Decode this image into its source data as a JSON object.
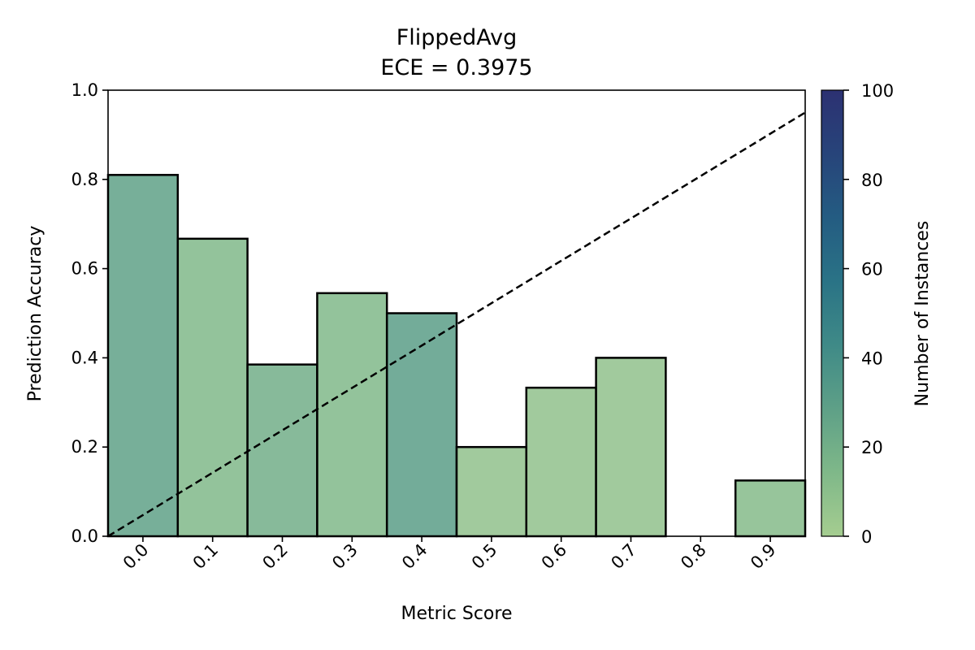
{
  "chart_data": {
    "type": "bar",
    "title": "FlippedAvg",
    "subtitle": "ECE = 0.3975",
    "xlabel": "Metric Score",
    "ylabel": "Prediction Accuracy",
    "categories": [
      "0.0",
      "0.1",
      "0.2",
      "0.3",
      "0.4",
      "0.5",
      "0.6",
      "0.7",
      "0.8",
      "0.9"
    ],
    "x": [
      0.0,
      0.1,
      0.2,
      0.3,
      0.4,
      0.5,
      0.6,
      0.7,
      0.8,
      0.9
    ],
    "values": [
      0.81,
      0.667,
      0.385,
      0.545,
      0.5,
      0.2,
      0.333,
      0.4,
      0.0,
      0.125
    ],
    "counts": [
      28,
      14,
      20,
      14,
      30,
      8,
      8,
      8,
      0,
      12
    ],
    "xlim": [
      -0.05,
      0.95
    ],
    "ylim": [
      0.0,
      1.0
    ],
    "yticks": [
      "0.0",
      "0.2",
      "0.4",
      "0.6",
      "0.8",
      "1.0"
    ],
    "reference_line": "y = x (dashed, black)",
    "colorbar": {
      "label": "Number of Instances",
      "range": [
        0,
        100
      ],
      "ticks": [
        "0",
        "20",
        "40",
        "60",
        "80",
        "100"
      ],
      "colormap": "crest",
      "colors": [
        "#a5cd90",
        "#7fb889",
        "#5ea087",
        "#3f8a87",
        "#2a7386",
        "#245c82",
        "#27447a",
        "#2c3172"
      ]
    },
    "grid": false,
    "legend": "none"
  }
}
